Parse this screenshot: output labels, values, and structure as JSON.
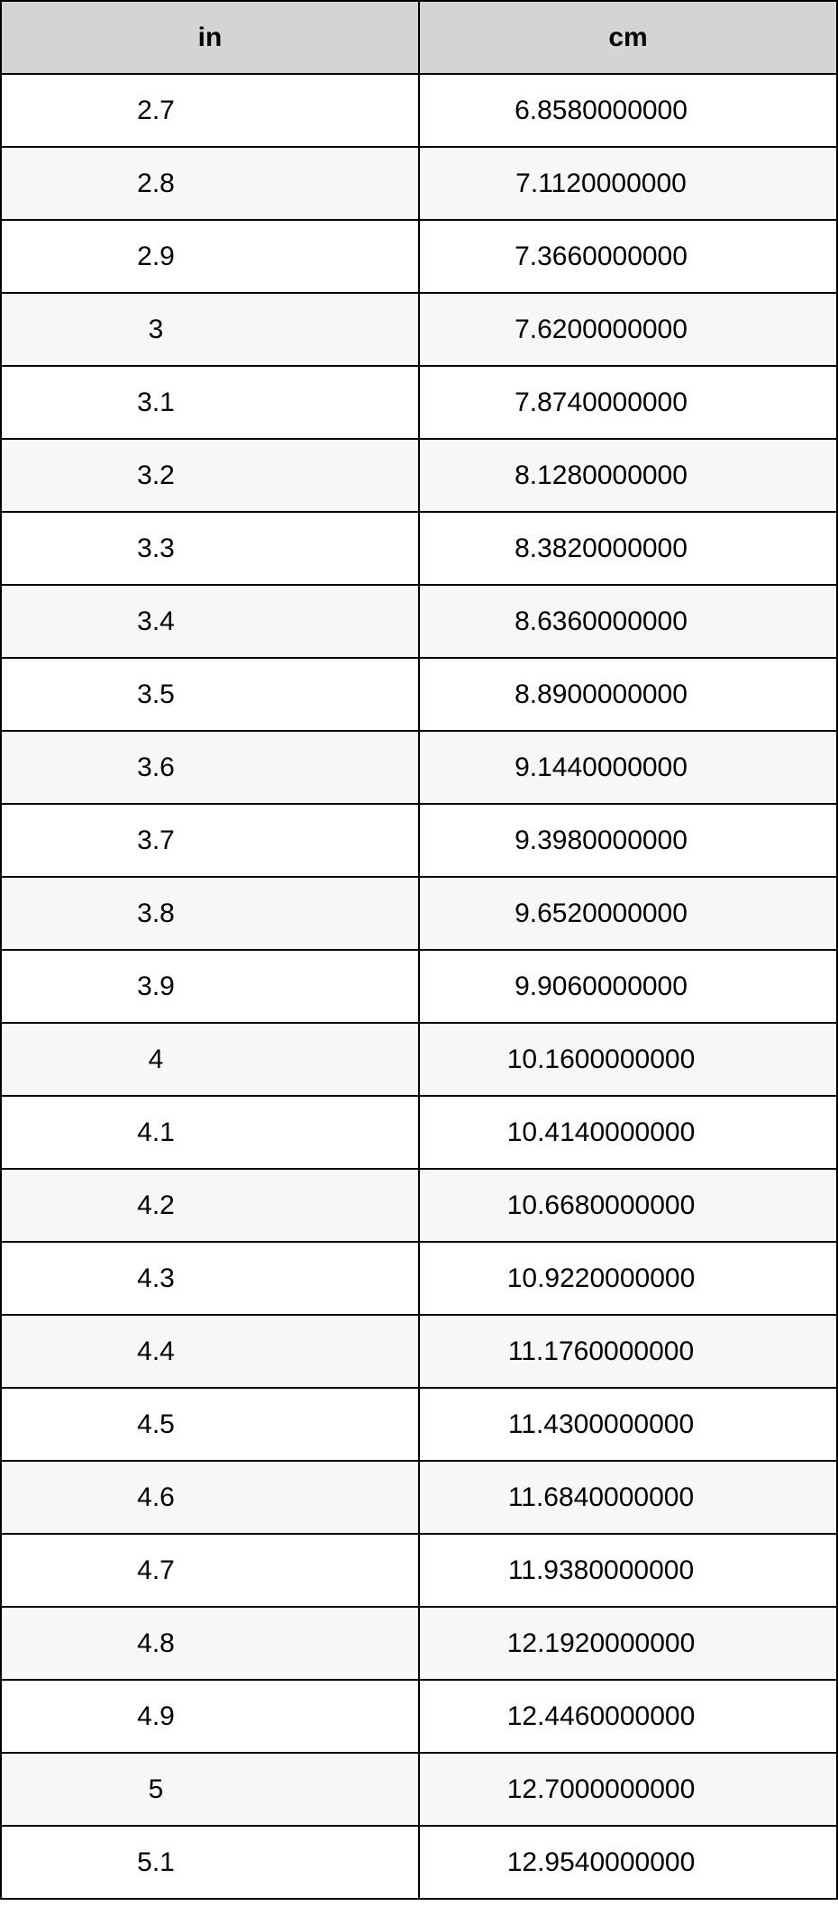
{
  "table": {
    "type": "table",
    "columns": [
      {
        "key": "in",
        "label": "in",
        "width_pct": 50,
        "align": "center"
      },
      {
        "key": "cm",
        "label": "cm",
        "width_pct": 50,
        "align": "center"
      }
    ],
    "rows": [
      [
        "2.7",
        "6.8580000000"
      ],
      [
        "2.8",
        "7.1120000000"
      ],
      [
        "2.9",
        "7.3660000000"
      ],
      [
        "3",
        "7.6200000000"
      ],
      [
        "3.1",
        "7.8740000000"
      ],
      [
        "3.2",
        "8.1280000000"
      ],
      [
        "3.3",
        "8.3820000000"
      ],
      [
        "3.4",
        "8.6360000000"
      ],
      [
        "3.5",
        "8.8900000000"
      ],
      [
        "3.6",
        "9.1440000000"
      ],
      [
        "3.7",
        "9.3980000000"
      ],
      [
        "3.8",
        "9.6520000000"
      ],
      [
        "3.9",
        "9.9060000000"
      ],
      [
        "4",
        "10.1600000000"
      ],
      [
        "4.1",
        "10.4140000000"
      ],
      [
        "4.2",
        "10.6680000000"
      ],
      [
        "4.3",
        "10.9220000000"
      ],
      [
        "4.4",
        "11.1760000000"
      ],
      [
        "4.5",
        "11.4300000000"
      ],
      [
        "4.6",
        "11.6840000000"
      ],
      [
        "4.7",
        "11.9380000000"
      ],
      [
        "4.8",
        "12.1920000000"
      ],
      [
        "4.9",
        "12.4460000000"
      ],
      [
        "5",
        "12.7000000000"
      ],
      [
        "5.1",
        "12.9540000000"
      ]
    ],
    "header_bg": "#d4d4d4",
    "row_bg_odd": "#ffffff",
    "row_bg_even": "#f7f7f7",
    "border_color": "#000000",
    "text_color": "#000000",
    "font_size_pt": 22,
    "header_font_weight": "bold"
  }
}
